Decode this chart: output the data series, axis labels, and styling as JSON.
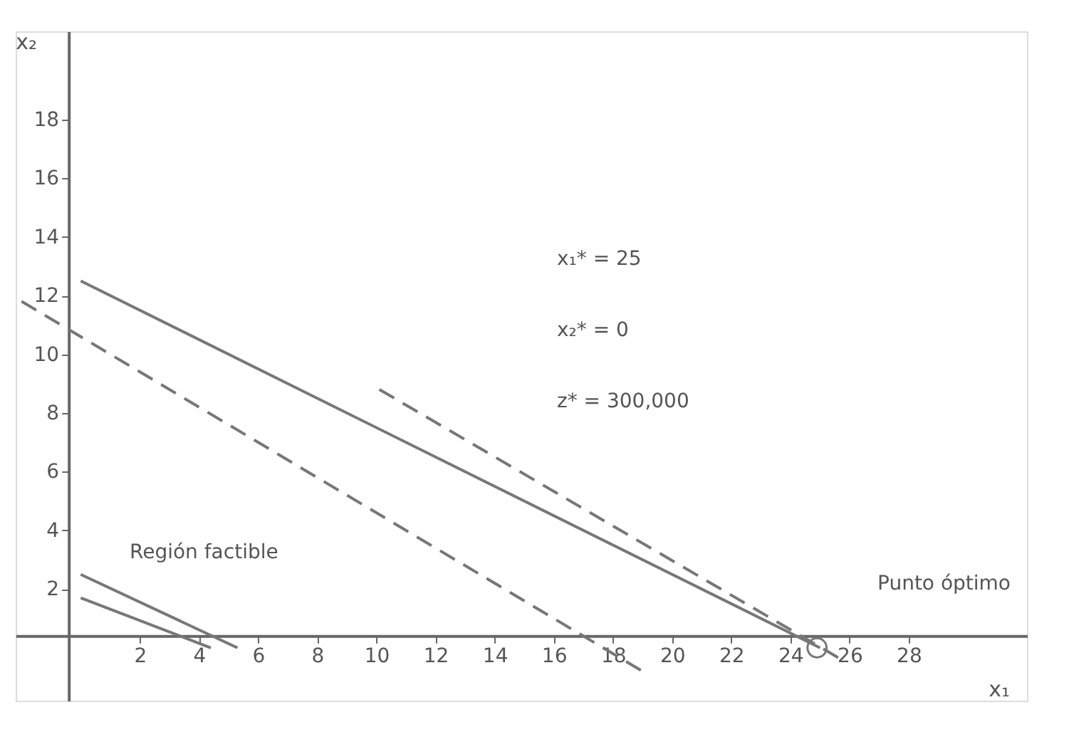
{
  "chart_data": {
    "type": "line",
    "xlabel": "x₁",
    "ylabel": "x₂",
    "xlim": [
      -2.2,
      32
    ],
    "ylim": [
      -1.8,
      21
    ],
    "xticks": [
      2,
      4,
      6,
      8,
      10,
      12,
      14,
      16,
      18,
      20,
      22,
      24,
      26,
      28
    ],
    "yticks": [
      2,
      4,
      6,
      8,
      10,
      12,
      14,
      16,
      18
    ],
    "grid": false,
    "series": [
      {
        "color": "#777777",
        "line_style": "solid",
        "x": [
          0,
          25
        ],
        "values": [
          12.5,
          0
        ]
      },
      {
        "color": "#777777",
        "line_style": "dashed",
        "x": [
          -2,
          19.0
        ],
        "values": [
          11.8,
          -0.8
        ]
      },
      {
        "color": "#777777",
        "line_style": "dashed",
        "x": [
          10.1,
          25.9
        ],
        "values": [
          8.8,
          -0.5
        ]
      },
      {
        "color": "#777777",
        "line_style": "solid",
        "x": [
          0,
          5.3
        ],
        "values": [
          2.5,
          0
        ]
      },
      {
        "color": "#777777",
        "line_style": "solid",
        "x": [
          0,
          4.4
        ],
        "values": [
          1.7,
          0
        ]
      },
      {
        "type": "scatter",
        "marker": "circle",
        "color": "#777777",
        "x": [
          24.9
        ],
        "values": [
          0
        ]
      }
    ],
    "annotations": [
      "x₁* = 25",
      "x₂* = 0",
      "z* = 300,000",
      "Región factible",
      "Punto óptimo"
    ]
  }
}
